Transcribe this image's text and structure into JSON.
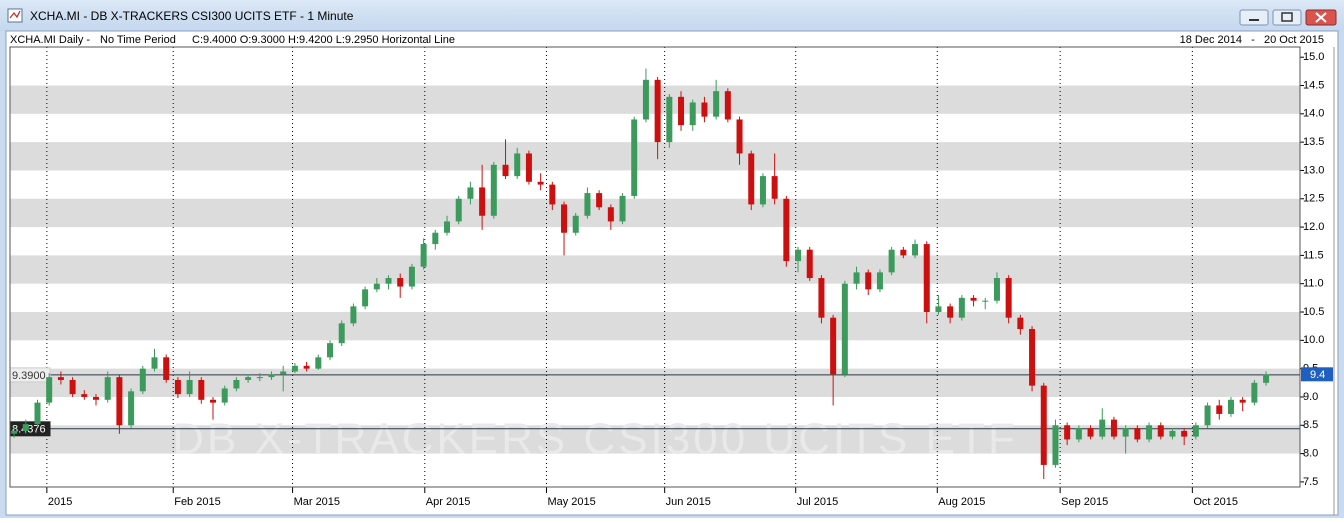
{
  "chart_data": {
    "type": "candlestick",
    "window_title": "XCHA.MI - DB X-TRACKERS CSI300 UCITS ETF - 1 Minute",
    "info": {
      "symbol": "XCHA.MI Daily -",
      "period": "No Time Period",
      "quote": "C:9.4000 O:9.3000 H:9.4200 L:9.2950 Horizontal Line",
      "range_start": "18 Dec 2014",
      "range_sep": "-",
      "range_end": "20 Oct 2015"
    },
    "watermark": "DB X-TRACKERS CSI300 UCITS ETF",
    "up_color": "#3b9a5c",
    "down_color": "#cc1010",
    "grid": true,
    "ylim": [
      7.41,
      15.18
    ],
    "yticks": [
      7.5,
      {
        "value": 8,
        "label": "8.0"
      },
      8.5,
      {
        "value": 9,
        "label": "9.0"
      },
      9.5,
      {
        "value": 10,
        "label": "10.0"
      },
      10.5,
      {
        "value": 11,
        "label": "11.0"
      },
      11.5,
      {
        "value": 12,
        "label": "12.0"
      },
      12.5,
      {
        "value": 13,
        "label": "13.0"
      },
      13.5,
      {
        "value": 14,
        "label": "14.0"
      },
      14.5,
      {
        "value": 15,
        "label": "15.0"
      }
    ],
    "xlim": [
      -0.35,
      109.9
    ],
    "xticks": [
      {
        "value": 2.8,
        "label": "2015"
      },
      {
        "value": 13.6,
        "label": "Feb 2015"
      },
      {
        "value": 23.8,
        "label": "Mar 2015"
      },
      {
        "value": 35.1,
        "label": "Apr 2015"
      },
      {
        "value": 45.5,
        "label": "May 2015"
      },
      {
        "value": 55.6,
        "label": "Jun 2015"
      },
      {
        "value": 66.8,
        "label": "Jul 2015"
      },
      {
        "value": 78.9,
        "label": "Aug 2015"
      },
      {
        "value": 89.4,
        "label": "Sep 2015"
      },
      {
        "value": 100.7,
        "label": "Oct 2015"
      }
    ],
    "hlines": [
      {
        "value": 9.39,
        "label": "9.3900"
      },
      {
        "value": 8.4376,
        "label": "8.4376"
      }
    ],
    "last_price": 9.4,
    "ohlc": [
      [
        8.35,
        8.48,
        8.28,
        8.4
      ],
      [
        8.4,
        8.6,
        8.35,
        8.52
      ],
      [
        8.52,
        8.95,
        8.48,
        8.9
      ],
      [
        8.9,
        9.42,
        8.85,
        9.35
      ],
      [
        9.35,
        9.45,
        9.22,
        9.3
      ],
      [
        9.3,
        9.35,
        9.0,
        9.05
      ],
      [
        9.05,
        9.12,
        8.95,
        9.0
      ],
      [
        9.0,
        9.05,
        8.85,
        8.95
      ],
      [
        8.95,
        9.45,
        8.9,
        9.35
      ],
      [
        9.35,
        9.4,
        8.35,
        8.5
      ],
      [
        8.5,
        9.15,
        8.45,
        9.1
      ],
      [
        9.1,
        9.55,
        9.05,
        9.5
      ],
      [
        9.5,
        9.85,
        9.45,
        9.7
      ],
      [
        9.7,
        9.75,
        9.25,
        9.3
      ],
      [
        9.3,
        9.35,
        8.98,
        9.05
      ],
      [
        9.05,
        9.45,
        9.0,
        9.3
      ],
      [
        9.3,
        9.35,
        8.88,
        8.95
      ],
      [
        8.95,
        9.0,
        8.6,
        8.9
      ],
      [
        8.9,
        9.2,
        8.85,
        9.15
      ],
      [
        9.15,
        9.35,
        9.1,
        9.3
      ],
      [
        9.3,
        9.4,
        9.25,
        9.35
      ],
      [
        9.35,
        9.42,
        9.28,
        9.35
      ],
      [
        9.35,
        9.45,
        9.3,
        9.4
      ],
      [
        9.4,
        9.55,
        9.1,
        9.45
      ],
      [
        9.45,
        9.6,
        9.42,
        9.55
      ],
      [
        9.55,
        9.62,
        9.45,
        9.5
      ],
      [
        9.5,
        9.75,
        9.48,
        9.7
      ],
      [
        9.7,
        10.0,
        9.65,
        9.95
      ],
      [
        9.95,
        10.35,
        9.9,
        10.3
      ],
      [
        10.3,
        10.65,
        10.25,
        10.6
      ],
      [
        10.6,
        10.95,
        10.55,
        10.9
      ],
      [
        10.9,
        11.1,
        10.85,
        11.0
      ],
      [
        11.0,
        11.15,
        10.9,
        11.1
      ],
      [
        11.1,
        11.18,
        10.75,
        10.95
      ],
      [
        10.95,
        11.35,
        10.9,
        11.3
      ],
      [
        11.3,
        11.8,
        11.25,
        11.7
      ],
      [
        11.7,
        11.95,
        11.6,
        11.9
      ],
      [
        11.9,
        12.2,
        11.85,
        12.1
      ],
      [
        12.1,
        12.55,
        12.05,
        12.5
      ],
      [
        12.5,
        12.8,
        12.4,
        12.7
      ],
      [
        12.7,
        13.1,
        11.95,
        12.2
      ],
      [
        12.2,
        13.15,
        12.15,
        13.1
      ],
      [
        13.1,
        13.55,
        12.85,
        12.9
      ],
      [
        12.9,
        13.4,
        12.85,
        13.3
      ],
      [
        13.3,
        13.35,
        12.75,
        12.8
      ],
      [
        12.8,
        12.95,
        12.65,
        12.75
      ],
      [
        12.75,
        12.8,
        12.3,
        12.4
      ],
      [
        12.4,
        12.45,
        11.5,
        11.9
      ],
      [
        11.9,
        12.25,
        11.85,
        12.2
      ],
      [
        12.2,
        12.7,
        12.15,
        12.6
      ],
      [
        12.6,
        12.65,
        12.3,
        12.35
      ],
      [
        12.35,
        12.4,
        11.95,
        12.1
      ],
      [
        12.1,
        12.6,
        12.05,
        12.55
      ],
      [
        12.55,
        13.95,
        12.5,
        13.9
      ],
      [
        13.9,
        14.8,
        13.85,
        14.6
      ],
      [
        14.6,
        14.65,
        13.2,
        13.5
      ],
      [
        13.5,
        14.35,
        13.4,
        14.3
      ],
      [
        14.3,
        14.4,
        13.7,
        13.8
      ],
      [
        13.8,
        14.25,
        13.7,
        14.2
      ],
      [
        14.2,
        14.3,
        13.85,
        13.95
      ],
      [
        13.95,
        14.6,
        13.9,
        14.4
      ],
      [
        14.4,
        14.45,
        13.85,
        13.9
      ],
      [
        13.9,
        13.95,
        13.1,
        13.3
      ],
      [
        13.3,
        13.35,
        12.3,
        12.4
      ],
      [
        12.4,
        12.95,
        12.35,
        12.9
      ],
      [
        12.9,
        13.3,
        12.4,
        12.5
      ],
      [
        12.5,
        12.55,
        11.3,
        11.4
      ],
      [
        11.4,
        11.65,
        11.2,
        11.6
      ],
      [
        11.6,
        11.65,
        11.05,
        11.1
      ],
      [
        11.1,
        11.15,
        10.3,
        10.4
      ],
      [
        10.4,
        10.45,
        8.85,
        9.4
      ],
      [
        9.4,
        11.05,
        9.35,
        11.0
      ],
      [
        11.0,
        11.3,
        10.9,
        11.2
      ],
      [
        11.2,
        11.25,
        10.8,
        10.9
      ],
      [
        10.9,
        11.25,
        10.85,
        11.2
      ],
      [
        11.2,
        11.65,
        11.15,
        11.6
      ],
      [
        11.6,
        11.65,
        11.45,
        11.5
      ],
      [
        11.5,
        11.78,
        11.45,
        11.7
      ],
      [
        11.7,
        11.75,
        10.3,
        10.5
      ],
      [
        10.5,
        10.8,
        10.45,
        10.6
      ],
      [
        10.6,
        10.65,
        10.3,
        10.4
      ],
      [
        10.4,
        10.8,
        10.35,
        10.75
      ],
      [
        10.75,
        10.8,
        10.6,
        10.7
      ],
      [
        10.7,
        10.75,
        10.55,
        10.7
      ],
      [
        10.7,
        11.2,
        10.65,
        11.1
      ],
      [
        11.1,
        11.15,
        10.3,
        10.4
      ],
      [
        10.4,
        10.45,
        10.1,
        10.2
      ],
      [
        10.2,
        10.25,
        9.1,
        9.2
      ],
      [
        9.2,
        9.25,
        7.55,
        7.8
      ],
      [
        7.8,
        8.6,
        7.75,
        8.5
      ],
      [
        8.5,
        8.55,
        8.15,
        8.25
      ],
      [
        8.25,
        8.5,
        8.2,
        8.45
      ],
      [
        8.45,
        8.5,
        8.25,
        8.3
      ],
      [
        8.3,
        8.8,
        8.25,
        8.6
      ],
      [
        8.6,
        8.65,
        8.25,
        8.3
      ],
      [
        8.3,
        8.5,
        8.0,
        8.45
      ],
      [
        8.45,
        8.5,
        8.2,
        8.25
      ],
      [
        8.25,
        8.55,
        8.2,
        8.5
      ],
      [
        8.5,
        8.55,
        8.25,
        8.3
      ],
      [
        8.3,
        8.45,
        8.25,
        8.4
      ],
      [
        8.4,
        8.45,
        8.15,
        8.3
      ],
      [
        8.3,
        8.55,
        8.25,
        8.5
      ],
      [
        8.5,
        8.9,
        8.45,
        8.85
      ],
      [
        8.85,
        8.95,
        8.6,
        8.7
      ],
      [
        8.7,
        9.0,
        8.65,
        8.95
      ],
      [
        8.95,
        9.0,
        8.75,
        8.9
      ],
      [
        8.9,
        9.3,
        8.85,
        9.25
      ],
      [
        9.25,
        9.45,
        9.2,
        9.4
      ]
    ]
  }
}
